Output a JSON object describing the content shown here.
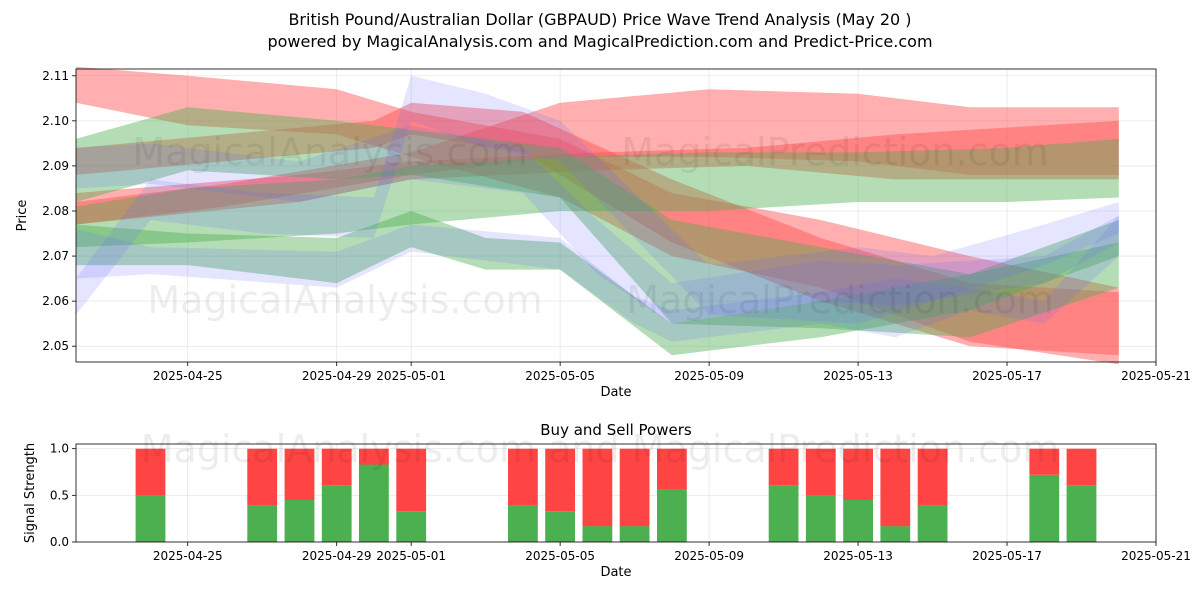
{
  "header": {
    "title": "British Pound/Australian Dollar (GBPAUD) Price Wave Trend Analysis (May 20 )",
    "subtitle": "powered by MagicalAnalysis.com and MagicalPrediction.com and Predict-Price.com"
  },
  "watermarks": {
    "top_1": "MagicalAnalysis.com",
    "top_2": "MagicalPrediction.com",
    "mid_1": "MagicalAnalysis.com",
    "mid_2": "MagicalPrediction.com",
    "bottom": "MagicalAnalysis.com and MagicalPrediction.com"
  },
  "colors": {
    "red_band": "#ff4d4d",
    "green_band": "#4caf50",
    "blue_band": "#6666ff",
    "buy": "#4caf50",
    "sell": "#ff4444"
  },
  "chart_data": [
    {
      "type": "area",
      "title": "",
      "xlabel": "Date",
      "ylabel": "Price",
      "x_ticks": [
        "2025-04-25",
        "2025-04-29",
        "2025-05-01",
        "2025-05-05",
        "2025-05-09",
        "2025-05-13",
        "2025-05-17",
        "2025-05-21"
      ],
      "y_ticks": [
        2.05,
        2.06,
        2.07,
        2.08,
        2.09,
        2.1,
        2.11
      ],
      "xlim": [
        "2025-04-22",
        "2025-05-21"
      ],
      "ylim": [
        2.0465,
        2.1115
      ],
      "grid": true,
      "series": [
        {
          "color": "red",
          "x": [
            "2025-04-22",
            "2025-04-25",
            "2025-04-29",
            "2025-05-01",
            "2025-05-05",
            "2025-05-08",
            "2025-05-12",
            "2025-05-16",
            "2025-05-20"
          ],
          "upper": [
            2.112,
            2.11,
            2.107,
            2.102,
            2.096,
            2.084,
            2.078,
            2.07,
            2.063
          ],
          "lower": [
            2.104,
            2.099,
            2.097,
            2.092,
            2.083,
            2.07,
            2.063,
            2.051,
            2.046
          ]
        },
        {
          "color": "red",
          "x": [
            "2025-04-22",
            "2025-04-26",
            "2025-04-30",
            "2025-05-01",
            "2025-05-04",
            "2025-05-08",
            "2025-05-12",
            "2025-05-16",
            "2025-05-20"
          ],
          "upper": [
            2.094,
            2.097,
            2.1,
            2.104,
            2.102,
            2.087,
            2.074,
            2.064,
            2.062
          ],
          "lower": [
            2.088,
            2.091,
            2.094,
            2.097,
            2.093,
            2.073,
            2.06,
            2.05,
            2.048
          ]
        },
        {
          "color": "red",
          "x": [
            "2025-04-22",
            "2025-04-26",
            "2025-05-01",
            "2025-05-05",
            "2025-05-09",
            "2025-05-13",
            "2025-05-16",
            "2025-05-20"
          ],
          "upper": [
            2.082,
            2.086,
            2.093,
            2.104,
            2.107,
            2.106,
            2.103,
            2.103
          ],
          "lower": [
            2.077,
            2.081,
            2.088,
            2.092,
            2.092,
            2.091,
            2.088,
            2.088
          ]
        },
        {
          "color": "red",
          "x": [
            "2025-04-22",
            "2025-04-28",
            "2025-05-01",
            "2025-05-06",
            "2025-05-10",
            "2025-05-14",
            "2025-05-20"
          ],
          "upper": [
            2.084,
            2.088,
            2.091,
            2.093,
            2.094,
            2.097,
            2.1
          ],
          "lower": [
            2.077,
            2.082,
            2.087,
            2.089,
            2.09,
            2.087,
            2.087
          ]
        },
        {
          "color": "green",
          "x": [
            "2025-04-22",
            "2025-04-25",
            "2025-04-29",
            "2025-05-01",
            "2025-05-05",
            "2025-05-09",
            "2025-05-13",
            "2025-05-17",
            "2025-05-20"
          ],
          "upper": [
            2.081,
            2.085,
            2.087,
            2.09,
            2.092,
            2.093,
            2.093,
            2.094,
            2.096
          ],
          "lower": [
            2.072,
            2.073,
            2.075,
            2.077,
            2.08,
            2.08,
            2.082,
            2.082,
            2.083
          ]
        },
        {
          "color": "green",
          "x": [
            "2025-04-22",
            "2025-04-25",
            "2025-04-29",
            "2025-05-01",
            "2025-05-05",
            "2025-05-08",
            "2025-05-12",
            "2025-05-16",
            "2025-05-20"
          ],
          "upper": [
            2.096,
            2.103,
            2.1,
            2.098,
            2.094,
            2.078,
            2.072,
            2.066,
            2.073
          ],
          "lower": [
            2.082,
            2.089,
            2.087,
            2.088,
            2.083,
            2.055,
            2.054,
            2.052,
            2.063
          ]
        },
        {
          "color": "green",
          "x": [
            "2025-04-22",
            "2025-04-25",
            "2025-04-29",
            "2025-05-01",
            "2025-05-03",
            "2025-05-05",
            "2025-05-08",
            "2025-05-12",
            "2025-05-16",
            "2025-05-20"
          ],
          "upper": [
            2.077,
            2.075,
            2.074,
            2.08,
            2.074,
            2.073,
            2.055,
            2.06,
            2.066,
            2.078
          ],
          "lower": [
            2.068,
            2.068,
            2.064,
            2.072,
            2.067,
            2.067,
            2.048,
            2.052,
            2.058,
            2.07
          ]
        },
        {
          "color": "blue",
          "x": [
            "2025-04-22",
            "2025-04-24",
            "2025-04-28",
            "2025-05-01",
            "2025-05-04",
            "2025-05-06",
            "2025-05-08",
            "2025-05-12",
            "2025-05-14",
            "2025-05-18",
            "2025-05-20"
          ],
          "upper": [
            2.094,
            2.095,
            2.091,
            2.099,
            2.094,
            2.078,
            2.064,
            2.069,
            2.068,
            2.07,
            2.079
          ],
          "lower": [
            2.085,
            2.086,
            2.082,
            2.087,
            2.084,
            2.066,
            2.055,
            2.06,
            2.059,
            2.064,
            2.073
          ]
        },
        {
          "color": "blue",
          "x": [
            "2025-04-22",
            "2025-04-24",
            "2025-04-29",
            "2025-05-01",
            "2025-05-05",
            "2025-05-07",
            "2025-05-08",
            "2025-05-12",
            "2025-05-14",
            "2025-05-16",
            "2025-05-18",
            "2025-05-20"
          ],
          "upper": [
            2.076,
            2.072,
            2.071,
            2.077,
            2.074,
            2.061,
            2.058,
            2.062,
            2.065,
            2.063,
            2.06,
            2.079
          ],
          "lower": [
            2.065,
            2.066,
            2.063,
            2.071,
            2.067,
            2.055,
            2.051,
            2.055,
            2.052,
            2.058,
            2.055,
            2.07
          ]
        },
        {
          "color": "blue",
          "x": [
            "2025-04-22",
            "2025-04-24",
            "2025-04-27",
            "2025-04-30",
            "2025-05-01",
            "2025-05-03",
            "2025-05-05",
            "2025-05-09",
            "2025-05-13",
            "2025-05-15",
            "2025-05-18",
            "2025-05-20"
          ],
          "upper": [
            2.065,
            2.087,
            2.084,
            2.083,
            2.11,
            2.106,
            2.1,
            2.068,
            2.072,
            2.07,
            2.077,
            2.082
          ],
          "lower": [
            2.057,
            2.078,
            2.075,
            2.074,
            2.1,
            2.094,
            2.091,
            2.057,
            2.055,
            2.06,
            2.068,
            2.075
          ]
        }
      ]
    },
    {
      "type": "bar",
      "title": "Buy and Sell Powers",
      "xlabel": "Date",
      "ylabel": "Signal Strength",
      "x_ticks": [
        "2025-04-25",
        "2025-04-29",
        "2025-05-01",
        "2025-05-05",
        "2025-05-09",
        "2025-05-13",
        "2025-05-17",
        "2025-05-21"
      ],
      "y_ticks": [
        0.0,
        0.5,
        1.0
      ],
      "xlim": [
        "2025-04-22",
        "2025-05-21"
      ],
      "ylim": [
        0,
        1.05
      ],
      "grid": true,
      "categories": [
        "2025-04-24",
        "2025-04-27",
        "2025-04-28",
        "2025-04-29",
        "2025-04-30",
        "2025-05-01",
        "2025-05-04",
        "2025-05-05",
        "2025-05-06",
        "2025-05-07",
        "2025-05-08",
        "2025-05-11",
        "2025-05-12",
        "2025-05-13",
        "2025-05-14",
        "2025-05-15",
        "2025-05-18",
        "2025-05-19"
      ],
      "series": [
        {
          "name": "Buy",
          "values": [
            0.5,
            0.39,
            0.45,
            0.61,
            0.83,
            0.33,
            0.39,
            0.33,
            0.17,
            0.17,
            0.56,
            0.61,
            0.5,
            0.45,
            0.17,
            0.39,
            0.72,
            0.61
          ]
        },
        {
          "name": "Sell",
          "values": [
            0.5,
            0.61,
            0.55,
            0.39,
            0.17,
            0.67,
            0.61,
            0.67,
            0.83,
            0.83,
            0.44,
            0.39,
            0.5,
            0.55,
            0.83,
            0.61,
            0.28,
            0.39
          ]
        }
      ]
    }
  ]
}
